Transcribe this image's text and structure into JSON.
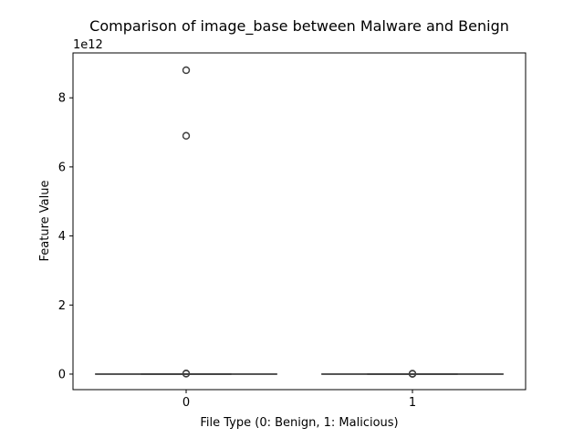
{
  "chart_data": {
    "type": "box",
    "title": "Comparison of image_base between Malware and Benign",
    "xlabel": "File Type (0: Benign, 1: Malicious)",
    "ylabel": "Feature Value",
    "y_offset_label": "1e12",
    "y_scale": 1000000000000.0,
    "categories": [
      "0",
      "1"
    ],
    "ylim": [
      -450000000000.0,
      9300000000000.0
    ],
    "yticks": [
      0,
      2000000000000.0,
      4000000000000.0,
      6000000000000.0,
      8000000000000.0
    ],
    "ytick_labels": [
      "0",
      "2",
      "4",
      "6",
      "8"
    ],
    "grid": false,
    "boxes": [
      {
        "category": "0",
        "whisker_low": 0,
        "q1": 0,
        "median": 0,
        "q3": 0,
        "whisker_high": 0,
        "outliers": [
          8800000000000.0,
          8800000000000.0,
          6900000000000.0,
          6900000000000.0,
          20000000000.0,
          10000000000.0
        ]
      },
      {
        "category": "1",
        "whisker_low": 0,
        "q1": 0,
        "median": 0,
        "q3": 0,
        "whisker_high": 0,
        "outliers": [
          15000000000.0,
          8000000000.0,
          4000000000.0
        ]
      }
    ],
    "colors": {
      "box_edge": "#3f3f3f",
      "axis": "#000000"
    }
  }
}
